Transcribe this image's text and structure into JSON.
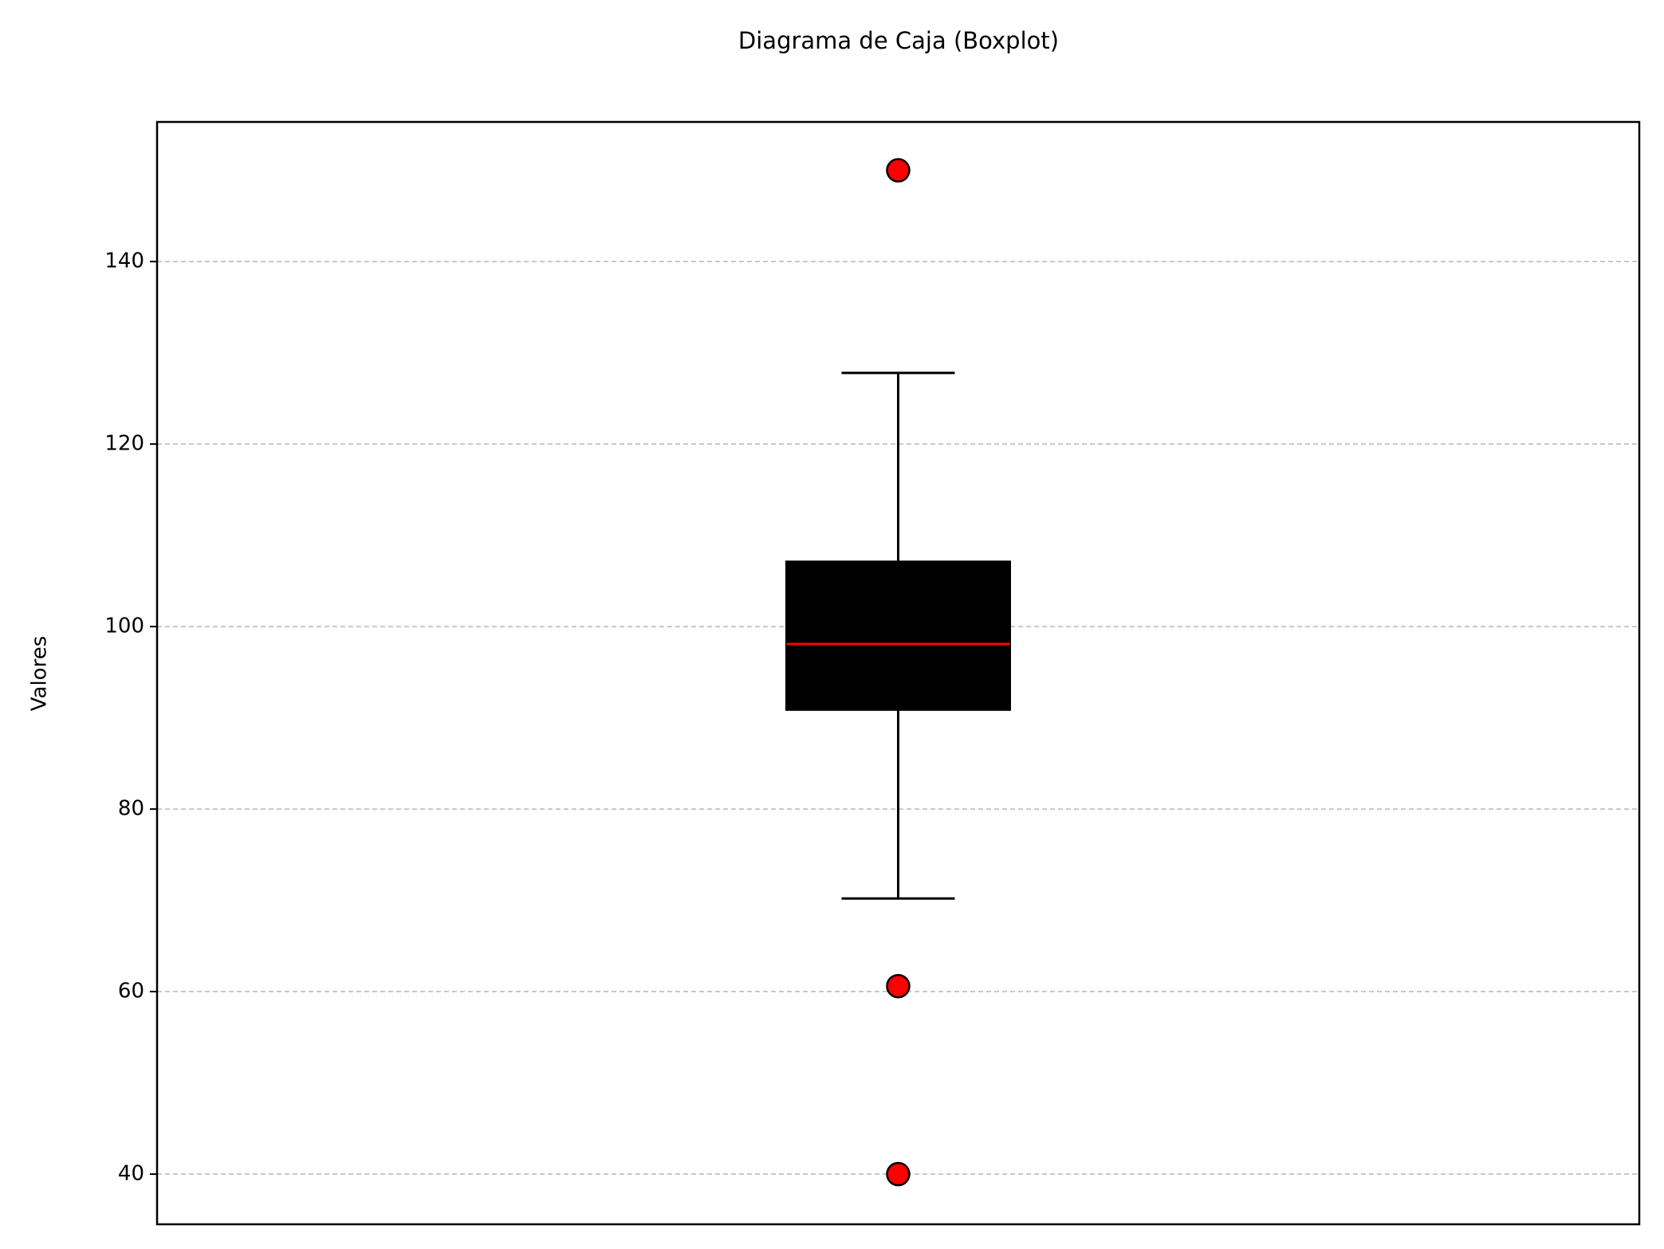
{
  "chart_data": {
    "type": "box",
    "title": "Diagrama de Caja (Boxplot)",
    "ylabel": "Valores",
    "boxes": [
      {
        "whislo": 70.2,
        "q1": 90.9,
        "med": 98.1,
        "q3": 107.1,
        "whishi": 127.8,
        "fliers": [
          150.0,
          60.6,
          40.0
        ]
      }
    ],
    "box_color": "#000000",
    "median_color": "#ff0000",
    "flier_color": "#ff0000",
    "ylim": [
      34.5,
      155.3
    ],
    "yticks": [
      40,
      60,
      80,
      100,
      120,
      140
    ],
    "grid": true
  }
}
